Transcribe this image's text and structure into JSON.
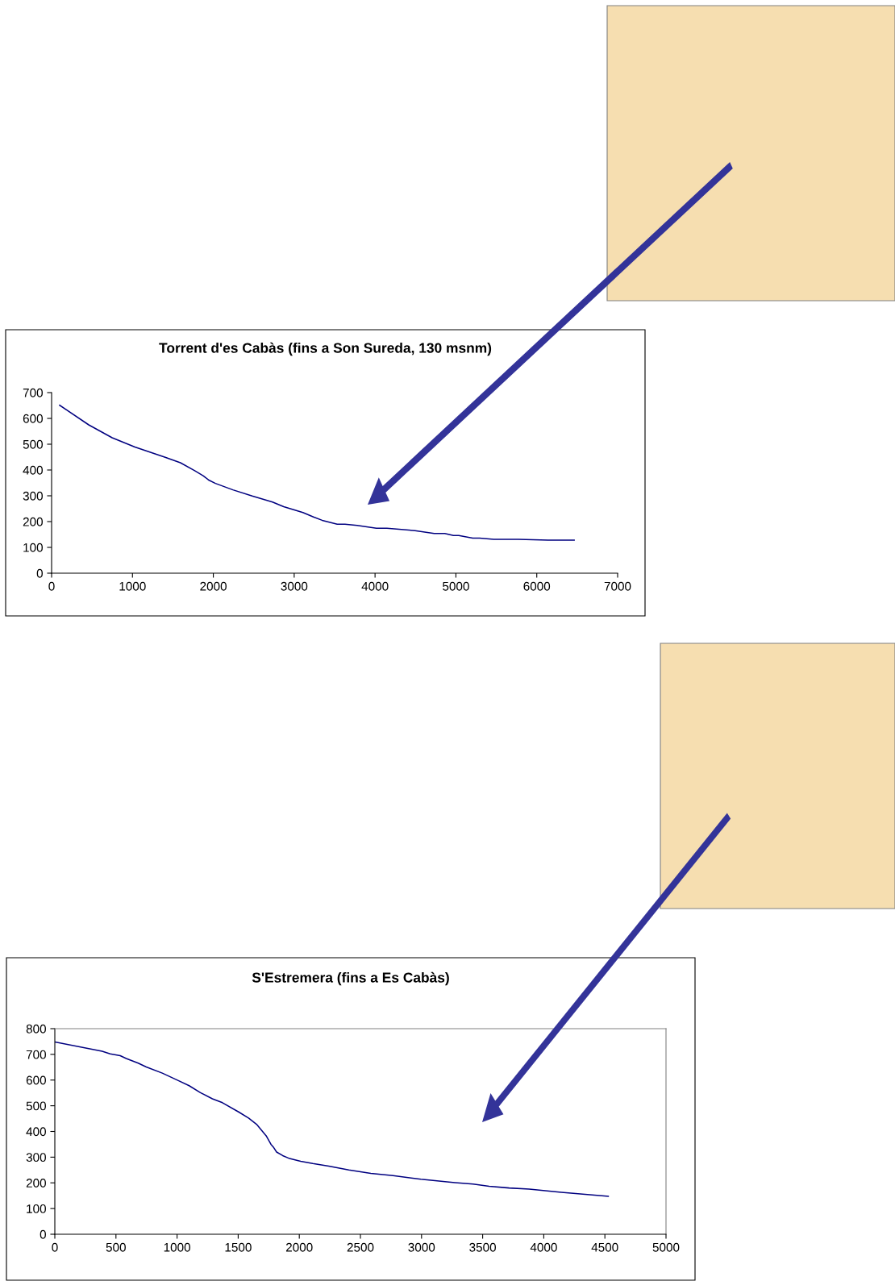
{
  "chart_data": [
    {
      "type": "line",
      "title": "Torrent d'es Cabàs (fins a Son Sureda, 130 msnm)",
      "color": "#000080",
      "marker": "none",
      "line_style": "solid",
      "grid": false,
      "legend": false,
      "x": [
        100,
        459,
        749,
        1030,
        1398,
        1593,
        1766,
        1874,
        1948,
        2026,
        2242,
        2481,
        2732,
        2870,
        3108,
        3238,
        3346,
        3532,
        3628,
        3779,
        4017,
        4147,
        4494,
        4732,
        4862,
        4970,
        5035,
        5208,
        5294,
        5468,
        5771,
        6139,
        6463
      ],
      "values": [
        651,
        575,
        525,
        489,
        450,
        428,
        398,
        378,
        360,
        348,
        323,
        299,
        276,
        258,
        235,
        218,
        205,
        190,
        190,
        185,
        174,
        174,
        165,
        154,
        154,
        146,
        146,
        136,
        136,
        131,
        131,
        128,
        128
      ],
      "xlim": [
        0,
        7000
      ],
      "ylim": [
        0,
        700
      ],
      "xticks": [
        0,
        1000,
        2000,
        3000,
        4000,
        5000,
        6000,
        7000
      ],
      "yticks": [
        0,
        100,
        200,
        300,
        400,
        500,
        600,
        700
      ]
    },
    {
      "type": "line",
      "title": "S'Estremera (fins a Es Cabàs)",
      "color": "#000080",
      "marker": "none",
      "line_style": "solid",
      "grid": false,
      "legend": false,
      "x": [
        0,
        387,
        453,
        535,
        584,
        682,
        748,
        879,
        1010,
        1099,
        1191,
        1289,
        1371,
        1503,
        1585,
        1650,
        1732,
        1768,
        1788,
        1814,
        1864,
        1913,
        2011,
        2110,
        2241,
        2405,
        2585,
        2766,
        2995,
        3274,
        3422,
        3553,
        3717,
        3881,
        4144,
        4528
      ],
      "values": [
        748,
        712,
        702,
        695,
        684,
        666,
        651,
        627,
        598,
        578,
        551,
        527,
        512,
        476,
        452,
        428,
        381,
        350,
        339,
        320,
        306,
        296,
        284,
        275,
        265,
        250,
        237,
        228,
        214,
        201,
        195,
        187,
        180,
        176,
        163,
        148
      ],
      "xlim": [
        0,
        5000
      ],
      "ylim": [
        0,
        800
      ],
      "xticks": [
        0,
        500,
        1000,
        1500,
        2000,
        2500,
        3000,
        3500,
        4000,
        4500,
        5000
      ],
      "yticks": [
        0,
        100,
        200,
        300,
        400,
        500,
        600,
        700,
        800
      ]
    }
  ]
}
